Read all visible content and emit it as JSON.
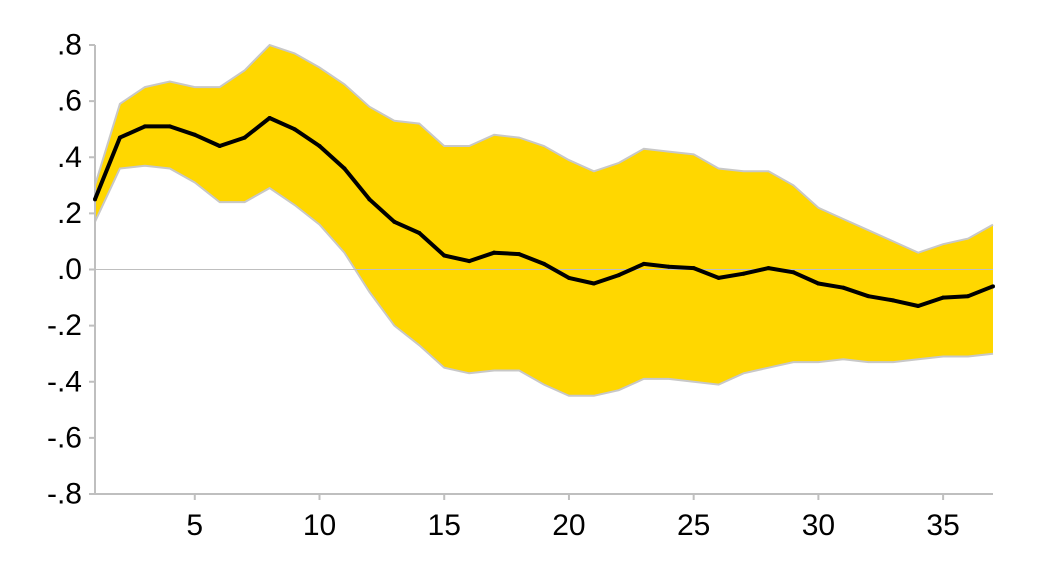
{
  "chart_data": {
    "type": "line",
    "title": "",
    "xlabel": "",
    "ylabel": "",
    "x": [
      1,
      2,
      3,
      4,
      5,
      6,
      7,
      8,
      9,
      10,
      11,
      12,
      13,
      14,
      15,
      16,
      17,
      18,
      19,
      20,
      21,
      22,
      23,
      24,
      25,
      26,
      27,
      28,
      29,
      30,
      31,
      32,
      33,
      34,
      35,
      36,
      37
    ],
    "xlim": [
      1,
      37
    ],
    "ylim": [
      -0.8,
      0.8
    ],
    "x_ticks": [
      5,
      10,
      15,
      20,
      25,
      30,
      35
    ],
    "x_tick_labels": [
      "5",
      "10",
      "15",
      "20",
      "25",
      "30",
      "35"
    ],
    "y_ticks": [
      0.8,
      0.6,
      0.4,
      0.2,
      0.0,
      -0.2,
      -0.4,
      -0.6,
      -0.8
    ],
    "y_tick_labels": [
      ".8",
      ".6",
      ".4",
      ".2",
      ".0",
      "-.2",
      "-.4",
      "-.6",
      "-.8"
    ],
    "grid": false,
    "zero_line": true,
    "series": [
      {
        "role": "estimate",
        "color": "#000000",
        "values": [
          0.25,
          0.47,
          0.51,
          0.51,
          0.48,
          0.44,
          0.47,
          0.54,
          0.5,
          0.44,
          0.36,
          0.25,
          0.17,
          0.13,
          0.05,
          0.03,
          0.06,
          0.055,
          0.02,
          -0.03,
          -0.05,
          -0.02,
          0.02,
          0.01,
          0.005,
          -0.03,
          -0.015,
          0.005,
          -0.01,
          -0.05,
          -0.065,
          -0.095,
          -0.11,
          -0.13,
          -0.1,
          -0.095,
          -0.06
        ]
      },
      {
        "role": "upper_band",
        "color": "#FFD700",
        "values": [
          0.3,
          0.59,
          0.65,
          0.67,
          0.65,
          0.65,
          0.71,
          0.8,
          0.77,
          0.72,
          0.66,
          0.58,
          0.53,
          0.52,
          0.44,
          0.44,
          0.48,
          0.47,
          0.44,
          0.39,
          0.35,
          0.38,
          0.43,
          0.42,
          0.41,
          0.36,
          0.35,
          0.35,
          0.3,
          0.22,
          0.18,
          0.14,
          0.1,
          0.06,
          0.09,
          0.11,
          0.16
        ]
      },
      {
        "role": "lower_band",
        "color": "#FFD700",
        "values": [
          0.17,
          0.36,
          0.37,
          0.36,
          0.31,
          0.24,
          0.24,
          0.29,
          0.23,
          0.16,
          0.06,
          -0.08,
          -0.2,
          -0.27,
          -0.35,
          -0.37,
          -0.36,
          -0.36,
          -0.41,
          -0.45,
          -0.45,
          -0.43,
          -0.39,
          -0.39,
          -0.4,
          -0.41,
          -0.37,
          -0.35,
          -0.33,
          -0.33,
          -0.32,
          -0.33,
          -0.33,
          -0.32,
          -0.31,
          -0.31,
          -0.3
        ]
      }
    ],
    "band_edge_color": "#C8C8C8",
    "axis_color": "#BFBFBF"
  }
}
